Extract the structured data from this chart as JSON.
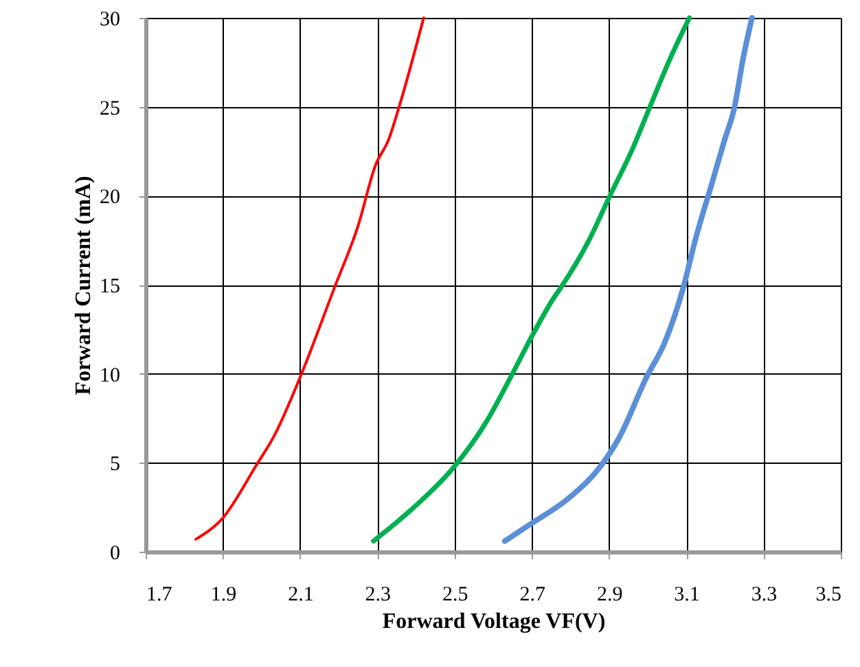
{
  "chart_data": {
    "type": "line",
    "xlabel": "Forward Voltage VF(V)",
    "ylabel": "Forward Current (mA)",
    "xlim": [
      1.7,
      3.5
    ],
    "xticks": [
      1.7,
      1.9,
      2.1,
      2.3,
      2.5,
      2.7,
      2.9,
      3.1,
      3.3,
      3.5
    ],
    "ylim": [
      0,
      30
    ],
    "yticks": [
      0,
      5,
      10,
      15,
      20,
      25,
      30
    ],
    "grid": true,
    "marker": "none",
    "line_style": "solid",
    "series": [
      {
        "color": "#ff0000",
        "x": [
          1.83,
          1.9,
          1.985,
          2.035,
          2.1,
          2.19,
          2.25,
          2.295,
          2.33,
          2.355,
          2.42
        ],
        "values": [
          0.7,
          1.9,
          4.8,
          6.6,
          9.8,
          14.9,
          18.3,
          21.7,
          23.2,
          24.9,
          30
        ]
      },
      {
        "color": "#00b050",
        "x": [
          2.29,
          2.395,
          2.5,
          2.585,
          2.645,
          2.705,
          2.755,
          2.777,
          2.848,
          2.9,
          2.962,
          3.004,
          3.058,
          3.108
        ],
        "values": [
          0.6,
          2.5,
          4.8,
          7.4,
          9.8,
          12.3,
          14.2,
          14.9,
          17.5,
          19.9,
          22.7,
          24.9,
          27.7,
          30
        ]
      },
      {
        "color": "#5b8fd8",
        "x": [
          2.63,
          2.7,
          2.795,
          2.867,
          2.926,
          2.997,
          3.045,
          3.093,
          3.123,
          3.165,
          3.2,
          3.224,
          3.247,
          3.27
        ],
        "values": [
          0.6,
          1.6,
          3.0,
          4.5,
          6.4,
          9.8,
          11.8,
          14.9,
          17.5,
          20.6,
          23.2,
          24.9,
          27.7,
          30
        ]
      }
    ]
  }
}
